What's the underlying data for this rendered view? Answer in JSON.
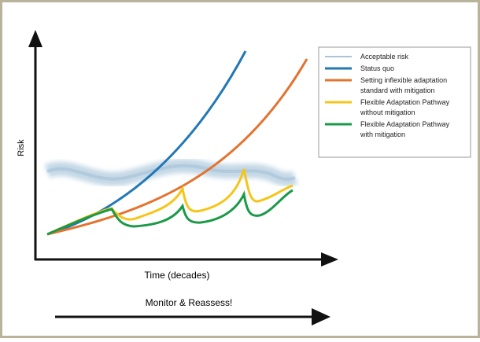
{
  "axes": {
    "y_label": "Risk",
    "x_label": "Time (decades)"
  },
  "footer": {
    "label": "Monitor & Reassess!"
  },
  "legend": [
    {
      "lines": [
        "Acceptable risk"
      ]
    },
    {
      "lines": [
        "Status quo"
      ]
    },
    {
      "lines": [
        "Setting inflexible adaptation",
        "standard with mitigation"
      ]
    },
    {
      "lines": [
        "Flexible Adaptation Pathway",
        "without mitigation"
      ]
    },
    {
      "lines": [
        "Flexible Adaptation Pathway",
        "with mitigation"
      ]
    }
  ]
}
